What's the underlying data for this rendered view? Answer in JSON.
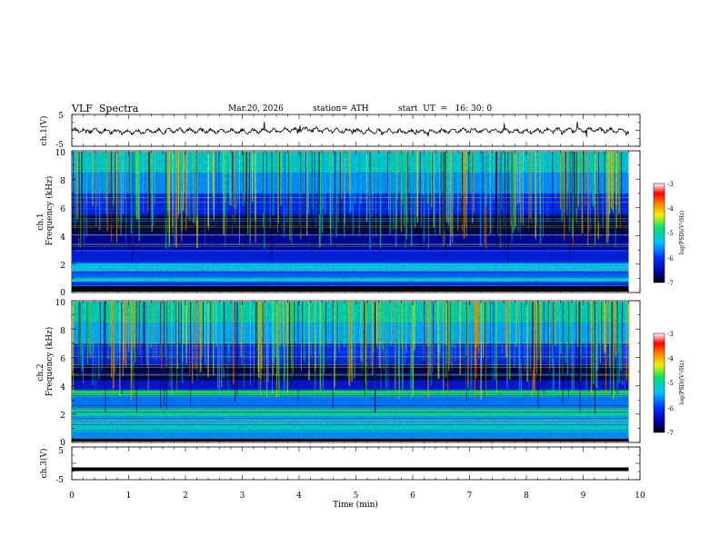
{
  "header": {
    "title": "VLF  Spectra",
    "date": "Mar.20, 2026",
    "station": "station= ATH",
    "start": "start  UT  =   16: 30: 0"
  },
  "colorbar_ticks": [
    "-3",
    "-4",
    "-5",
    "-6",
    "-7"
  ],
  "chart_data": [
    {
      "type": "line",
      "name": "ch1-waveform",
      "ylabel": "ch.1(V)",
      "ylim": [
        -5,
        5
      ],
      "yticks": [
        "5",
        "-5"
      ],
      "x": [
        0,
        1,
        2,
        3,
        4,
        5,
        6,
        7,
        8,
        9,
        9.8
      ],
      "y": [
        0.2,
        -0.6,
        0.0,
        -0.4,
        0.3,
        -0.2,
        -0.5,
        0.0,
        -0.3,
        0.2,
        -0.2
      ]
    },
    {
      "type": "heatmap",
      "name": "ch1-spectrogram",
      "ylabel_1": "ch.1",
      "ylabel_2": "Frequency (kHz)",
      "ylim": [
        0,
        10
      ],
      "yticks": [
        "10",
        "8",
        "6",
        "4",
        "2",
        "0"
      ],
      "colorbar_label": "log(PSD)(V²/Hz)",
      "color_range": [
        -7,
        -3
      ],
      "x_range_min": [
        0,
        9.8
      ],
      "bands_khz": [
        {
          "f0": 0,
          "f1": 0.4,
          "level": -7.0
        },
        {
          "f0": 0.4,
          "f1": 0.7,
          "level": -6.0
        },
        {
          "f0": 0.7,
          "f1": 1.0,
          "level": -5.2
        },
        {
          "f0": 1.0,
          "f1": 1.5,
          "level": -5.8
        },
        {
          "f0": 1.5,
          "f1": 2.1,
          "level": -5.4
        },
        {
          "f0": 2.1,
          "f1": 3.0,
          "level": -6.2
        },
        {
          "f0": 3.0,
          "f1": 4.2,
          "level": -6.6
        },
        {
          "f0": 4.2,
          "f1": 5.5,
          "level": -6.9
        },
        {
          "f0": 5.5,
          "f1": 7.0,
          "level": -6.1
        },
        {
          "f0": 7.0,
          "f1": 8.5,
          "level": -5.6
        },
        {
          "f0": 8.5,
          "f1": 10.0,
          "level": -5.2
        }
      ]
    },
    {
      "type": "heatmap",
      "name": "ch2-spectrogram",
      "ylabel_1": "ch.2",
      "ylabel_2": "Frequency (kHz)",
      "ylim": [
        0,
        10
      ],
      "yticks": [
        "10",
        "8",
        "6",
        "4",
        "2",
        "0"
      ],
      "colorbar_label": "log(PSD)(V²/Hz)",
      "color_range": [
        -7,
        -3
      ],
      "x_range_min": [
        0,
        9.8
      ],
      "bands_khz": [
        {
          "f0": 0,
          "f1": 0.2,
          "level": -7.0
        },
        {
          "f0": 0.2,
          "f1": 0.8,
          "level": -5.6
        },
        {
          "f0": 0.8,
          "f1": 1.3,
          "level": -5.2
        },
        {
          "f0": 1.3,
          "f1": 1.8,
          "level": -5.5
        },
        {
          "f0": 1.8,
          "f1": 2.4,
          "level": -5.0
        },
        {
          "f0": 2.4,
          "f1": 3.3,
          "level": -5.7
        },
        {
          "f0": 3.3,
          "f1": 3.7,
          "level": -4.8
        },
        {
          "f0": 3.7,
          "f1": 4.4,
          "level": -6.3
        },
        {
          "f0": 4.4,
          "f1": 5.5,
          "level": -6.8
        },
        {
          "f0": 5.5,
          "f1": 7.0,
          "level": -6.0
        },
        {
          "f0": 7.0,
          "f1": 8.5,
          "level": -5.5
        },
        {
          "f0": 8.5,
          "f1": 10.0,
          "level": -5.1
        }
      ]
    },
    {
      "type": "line",
      "name": "ch3-waveform",
      "ylabel": "ch.3(V)",
      "ylim": [
        -5,
        5
      ],
      "yticks": [
        "5",
        "-5"
      ],
      "x": [
        0,
        9.8
      ],
      "y": [
        -1.8,
        -1.8
      ],
      "xlabel": "Time (min)",
      "xlim": [
        0,
        10
      ],
      "xticks": [
        "0",
        "1",
        "2",
        "3",
        "4",
        "5",
        "6",
        "7",
        "8",
        "9",
        "10"
      ]
    }
  ]
}
